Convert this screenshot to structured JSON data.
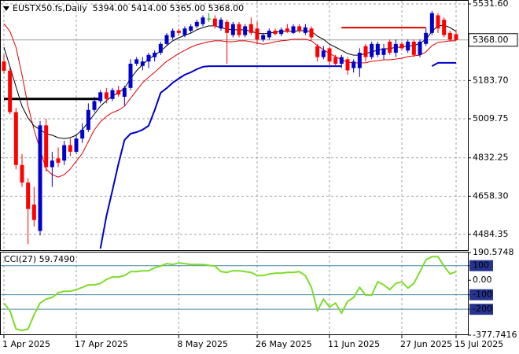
{
  "chart_data": [
    {
      "type": "candlestick",
      "title": "EUSTX50.fs,Daily  5394.00 5414.00 5365.00 5368.00",
      "categories": [
        "1 Apr 2025",
        null,
        null,
        null,
        null,
        null,
        null,
        null,
        null,
        null,
        null,
        null,
        "17 Apr 2025",
        null,
        null,
        null,
        null,
        null,
        null,
        null,
        null,
        null,
        null,
        null,
        null,
        null,
        null,
        null,
        null,
        "8 May 2025",
        null,
        null,
        null,
        null,
        null,
        null,
        null,
        null,
        null,
        null,
        null,
        null,
        "26 May 2025",
        null,
        null,
        null,
        null,
        null,
        null,
        null,
        null,
        null,
        null,
        null,
        "11 Jun 2025",
        null,
        null,
        null,
        null,
        null,
        null,
        null,
        null,
        null,
        null,
        null,
        "27 Jun 2025",
        null,
        null,
        null,
        null,
        null,
        null,
        null,
        null,
        "15 Jul 2025"
      ],
      "ohlc": [
        [
          5270,
          5300,
          5215,
          5228
        ],
        [
          5228,
          5240,
          5030,
          5040
        ],
        [
          5040,
          5060,
          4780,
          4800
        ],
        [
          4800,
          4850,
          4700,
          4720
        ],
        [
          4720,
          4740,
          4440,
          4600
        ],
        [
          4620,
          4700,
          4520,
          4550
        ],
        [
          4500,
          5000,
          4480,
          4980
        ],
        [
          4980,
          5010,
          4770,
          4790
        ],
        [
          4790,
          4860,
          4700,
          4820
        ],
        [
          4830,
          4880,
          4790,
          4810
        ],
        [
          4820,
          4910,
          4800,
          4890
        ],
        [
          4890,
          4920,
          4840,
          4860
        ],
        [
          4860,
          4940,
          4850,
          4920
        ],
        [
          4920,
          4990,
          4900,
          4960
        ],
        [
          4960,
          5080,
          4950,
          5050
        ],
        [
          5050,
          5110,
          5040,
          5090
        ],
        [
          5090,
          5140,
          5080,
          5130
        ],
        [
          5130,
          5150,
          5080,
          5100
        ],
        [
          5100,
          5150,
          5090,
          5140
        ],
        [
          5140,
          5160,
          5110,
          5120
        ],
        [
          5110,
          5160,
          5070,
          5150
        ],
        [
          5150,
          5280,
          5140,
          5260
        ],
        [
          5260,
          5290,
          5250,
          5280
        ],
        [
          5250,
          5290,
          5230,
          5270
        ],
        [
          5270,
          5310,
          5240,
          5300
        ],
        [
          5290,
          5320,
          5270,
          5310
        ],
        [
          5310,
          5360,
          5300,
          5350
        ],
        [
          5350,
          5400,
          5340,
          5390
        ],
        [
          5380,
          5420,
          5370,
          5410
        ],
        [
          5410,
          5420,
          5390,
          5400
        ],
        [
          5390,
          5430,
          5380,
          5420
        ],
        [
          5410,
          5440,
          5400,
          5430
        ],
        [
          5430,
          5460,
          5420,
          5450
        ],
        [
          5440,
          5480,
          5430,
          5470
        ],
        [
          5465,
          5490,
          5450,
          5465
        ],
        [
          5465,
          5480,
          5420,
          5430
        ],
        [
          5420,
          5470,
          5410,
          5460
        ],
        [
          5450,
          5460,
          5260,
          5400
        ],
        [
          5390,
          5450,
          5380,
          5440
        ],
        [
          5440,
          5450,
          5380,
          5390
        ],
        [
          5390,
          5440,
          5380,
          5430
        ],
        [
          5440,
          5470,
          5390,
          5400
        ],
        [
          5420,
          5450,
          5350,
          5370
        ],
        [
          5370,
          5400,
          5360,
          5390
        ],
        [
          5380,
          5420,
          5370,
          5410
        ],
        [
          5410,
          5420,
          5390,
          5395
        ],
        [
          5395,
          5425,
          5385,
          5415
        ],
        [
          5420,
          5440,
          5400,
          5405
        ],
        [
          5400,
          5440,
          5395,
          5430
        ],
        [
          5430,
          5440,
          5400,
          5410
        ],
        [
          5400,
          5440,
          5390,
          5425
        ],
        [
          5420,
          5430,
          5370,
          5380
        ],
        [
          5340,
          5350,
          5270,
          5290
        ],
        [
          5290,
          5340,
          5280,
          5320
        ],
        [
          5330,
          5340,
          5250,
          5270
        ],
        [
          5290,
          5300,
          5250,
          5260
        ],
        [
          5260,
          5300,
          5240,
          5290
        ],
        [
          5280,
          5290,
          5210,
          5230
        ],
        [
          5240,
          5280,
          5220,
          5270
        ],
        [
          5240,
          5330,
          5200,
          5310
        ],
        [
          5340,
          5350,
          5270,
          5290
        ],
        [
          5290,
          5360,
          5280,
          5350
        ],
        [
          5300,
          5360,
          5290,
          5350
        ],
        [
          5300,
          5350,
          5280,
          5330
        ],
        [
          5360,
          5370,
          5300,
          5310
        ],
        [
          5310,
          5370,
          5290,
          5350
        ],
        [
          5350,
          5360,
          5320,
          5330
        ],
        [
          5320,
          5370,
          5310,
          5360
        ],
        [
          5360,
          5370,
          5290,
          5300
        ],
        [
          5300,
          5370,
          5290,
          5360
        ],
        [
          5350,
          5420,
          5340,
          5400
        ],
        [
          5400,
          5500,
          5390,
          5490
        ],
        [
          5480,
          5490,
          5400,
          5420
        ],
        [
          5460,
          5470,
          5380,
          5390
        ],
        [
          5400,
          5410,
          5360,
          5370
        ],
        [
          5394,
          5414,
          5365,
          5368
        ]
      ],
      "up_color": "#0000cd",
      "down_color": "#ff0000",
      "doji_color": "#00b000",
      "series": [
        {
          "color": "#e00000",
          "width": 1,
          "values": [
            5442,
            5407,
            5335,
            5210,
            5067,
            4960,
            4870,
            4781,
            4756,
            4745,
            4756,
            4781,
            4817,
            4853,
            4906,
            4960,
            4996,
            5021,
            5038,
            5049,
            5067,
            5103,
            5138,
            5174,
            5199,
            5221,
            5246,
            5271,
            5289,
            5306,
            5321,
            5335,
            5346,
            5353,
            5360,
            5364,
            5364,
            5360,
            5360,
            5364,
            5364,
            5360,
            5353,
            5349,
            5353,
            5360,
            5364,
            5367,
            5371,
            5371,
            5371,
            5364,
            5342,
            5324,
            5306,
            5292,
            5278,
            5267,
            5264,
            5264,
            5264,
            5271,
            5274,
            5278,
            5278,
            5281,
            5285,
            5292,
            5296,
            5299,
            5314,
            5342,
            5357,
            5360,
            5364,
            5364
          ]
        },
        {
          "color": "#000000",
          "width": 1,
          "values": [
            5335,
            5246,
            5156,
            5067,
            5013,
            4978,
            4960,
            4942,
            4935,
            4924,
            4920,
            4924,
            4935,
            4960,
            4996,
            5031,
            5067,
            5092,
            5113,
            5128,
            5149,
            5192,
            5228,
            5256,
            5281,
            5299,
            5317,
            5342,
            5364,
            5378,
            5389,
            5399,
            5414,
            5424,
            5432,
            5432,
            5424,
            5417,
            5414,
            5414,
            5414,
            5407,
            5399,
            5396,
            5399,
            5403,
            5407,
            5407,
            5407,
            5410,
            5410,
            5407,
            5385,
            5371,
            5349,
            5335,
            5321,
            5306,
            5299,
            5299,
            5306,
            5314,
            5321,
            5328,
            5328,
            5335,
            5335,
            5342,
            5342,
            5353,
            5371,
            5407,
            5432,
            5435,
            5424,
            5407
          ]
        },
        {
          "color": "#0000cd",
          "width": 2,
          "values": [
            null,
            null,
            null,
            null,
            null,
            null,
            null,
            null,
            null,
            null,
            null,
            null,
            null,
            null,
            null,
            null,
            4420,
            4567,
            4685,
            4806,
            4913,
            4942,
            4949,
            4960,
            4978,
            5049,
            5128,
            5149,
            5174,
            5192,
            5210,
            5221,
            5235,
            5246,
            5249,
            5249,
            5249,
            5249,
            5249,
            5249,
            5249,
            5249,
            5249,
            5249,
            5249,
            5249,
            5249,
            5249,
            5249,
            5249,
            5249,
            5249,
            5249,
            5249,
            5249,
            5249,
            5249,
            null,
            null,
            null,
            null,
            null,
            null,
            null,
            null,
            null,
            null,
            null,
            null,
            null,
            null,
            5249,
            5264,
            5264,
            5264,
            5264
          ]
        },
        {
          "color": "#000000",
          "width": 3,
          "values": [
            5100,
            5100,
            5100,
            5100,
            5100,
            5100,
            5100,
            5100,
            5100,
            5100,
            5100,
            5100,
            5100,
            5100,
            5100,
            5100,
            5100,
            null,
            null,
            null,
            null,
            null,
            null,
            null,
            null,
            null,
            null,
            null,
            null,
            null,
            null,
            null,
            null,
            null,
            null,
            null,
            null,
            null,
            null,
            null,
            null,
            null,
            null,
            null,
            null,
            null,
            null,
            null,
            null,
            null,
            null,
            null,
            null,
            null,
            null,
            null,
            null,
            null,
            null,
            null,
            null,
            null,
            null,
            null,
            null,
            null,
            null,
            null,
            null,
            null,
            null,
            null,
            null,
            null,
            null,
            null
          ]
        },
        {
          "color": "#e00000",
          "width": 2,
          "values": [
            null,
            null,
            null,
            null,
            null,
            null,
            null,
            null,
            null,
            null,
            null,
            null,
            null,
            null,
            null,
            null,
            null,
            null,
            null,
            null,
            null,
            null,
            null,
            null,
            null,
            null,
            null,
            null,
            null,
            null,
            null,
            null,
            null,
            null,
            null,
            null,
            null,
            null,
            null,
            null,
            null,
            null,
            null,
            null,
            null,
            null,
            null,
            null,
            null,
            null,
            null,
            null,
            null,
            null,
            null,
            null,
            5424,
            5424,
            5424,
            5424,
            5424,
            5424,
            5424,
            5424,
            5424,
            5424,
            5424,
            5424,
            5424,
            5424,
            5424,
            null,
            null,
            null,
            null,
            null
          ]
        }
      ],
      "last_price": {
        "value": 5368,
        "label": "5368.00"
      },
      "ylim": [
        4412.9,
        5549.5
      ],
      "yticks": [
        {
          "value": 5531.6,
          "label": "5531.60"
        },
        {
          "value": 5183.7,
          "label": "5183.70"
        },
        5009.75,
        4832.25,
        {
          "value": 4658.3,
          "label": "4658.30"
        },
        4484.35
      ],
      "grid": true
    },
    {
      "type": "line",
      "title": "CCI(27) 59.7490",
      "color": "#7ddc2a",
      "values": [
        -157,
        -211,
        -335,
        -346,
        -335,
        -238,
        -157,
        -130,
        -119,
        -86,
        -76,
        -76,
        -65,
        -49,
        -32,
        -32,
        -22,
        5,
        22,
        22,
        32,
        59,
        59,
        65,
        65,
        86,
        97,
        114,
        108,
        119,
        114,
        108,
        108,
        108,
        103,
        97,
        59,
        54,
        65,
        65,
        59,
        54,
        32,
        32,
        43,
        49,
        49,
        54,
        54,
        59,
        32,
        -49,
        -211,
        -130,
        -184,
        -157,
        -227,
        -146,
        -119,
        -49,
        -103,
        -103,
        -11,
        -32,
        -65,
        -22,
        -11,
        -54,
        -22,
        59,
        141,
        162,
        162,
        97,
        43,
        59.749
      ],
      "ylim": [
        -377.7416,
        190.5748
      ],
      "yticks": [
        190.5748,
        100,
        {
          "value": 0,
          "label": "0.00"
        },
        -100,
        -200,
        -377.7416
      ],
      "level_color": "#4a8aa8",
      "level_label_color": "#26348f"
    }
  ]
}
